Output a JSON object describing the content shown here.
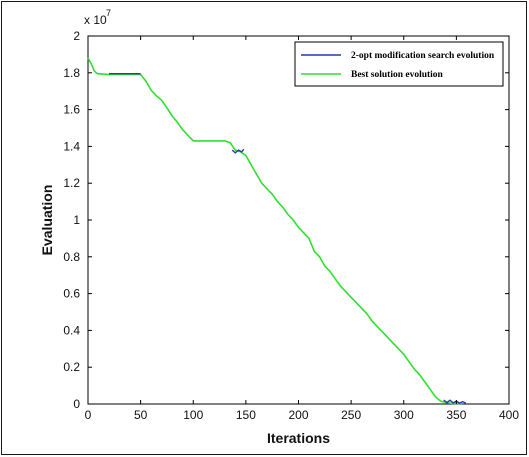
{
  "chart_data": {
    "type": "line",
    "xlabel": "Iterations",
    "ylabel": "Evaluation",
    "x_ticks": [
      "0",
      "50",
      "100",
      "150",
      "200",
      "250",
      "300",
      "350",
      "400"
    ],
    "y_ticks": [
      "0",
      "0.2",
      "0.4",
      "0.6",
      "0.8",
      "1",
      "1.2",
      "1.4",
      "1.6",
      "1.8",
      "2"
    ],
    "y_multiplier_base": "x 10",
    "y_multiplier_exp": "7",
    "xlim": [
      0,
      400
    ],
    "ylim": [
      0,
      20000000
    ],
    "grid": false,
    "legend_position": "top-right",
    "series": [
      {
        "name": "2-opt modification search evolution",
        "color": "#1f3fa8",
        "segments": [
          [
            [
              20,
              17950000
            ],
            [
              30,
              17950000
            ],
            [
              40,
              17950000
            ],
            [
              50,
              17950000
            ]
          ],
          [
            [
              137,
              13800000
            ],
            [
              140,
              13650000
            ],
            [
              143,
              13800000
            ],
            [
              146,
              13700000
            ],
            [
              148,
              13850000
            ]
          ],
          [
            [
              338,
              220000
            ],
            [
              341,
              80000
            ],
            [
              344,
              200000
            ],
            [
              347,
              60000
            ],
            [
              350,
              150000
            ],
            [
              353,
              50000
            ],
            [
              356,
              130000
            ],
            [
              359,
              50000
            ]
          ]
        ]
      },
      {
        "name": "Best solution evolution",
        "color": "#33dd33",
        "points": [
          [
            0,
            18800000
          ],
          [
            3,
            18500000
          ],
          [
            6,
            18100000
          ],
          [
            9,
            17950000
          ],
          [
            20,
            17900000
          ],
          [
            35,
            17900000
          ],
          [
            50,
            17900000
          ],
          [
            55,
            17550000
          ],
          [
            60,
            17050000
          ],
          [
            65,
            16750000
          ],
          [
            70,
            16500000
          ],
          [
            75,
            16100000
          ],
          [
            80,
            15650000
          ],
          [
            85,
            15300000
          ],
          [
            90,
            14900000
          ],
          [
            95,
            14600000
          ],
          [
            100,
            14300000
          ],
          [
            110,
            14300000
          ],
          [
            120,
            14300000
          ],
          [
            130,
            14300000
          ],
          [
            135,
            14200000
          ],
          [
            140,
            13800000
          ],
          [
            145,
            13700000
          ],
          [
            150,
            13500000
          ],
          [
            155,
            13000000
          ],
          [
            160,
            12500000
          ],
          [
            165,
            12000000
          ],
          [
            170,
            11700000
          ],
          [
            175,
            11400000
          ],
          [
            180,
            11000000
          ],
          [
            185,
            10700000
          ],
          [
            190,
            10300000
          ],
          [
            195,
            10000000
          ],
          [
            200,
            9600000
          ],
          [
            205,
            9300000
          ],
          [
            210,
            9000000
          ],
          [
            215,
            8300000
          ],
          [
            220,
            8000000
          ],
          [
            225,
            7500000
          ],
          [
            230,
            7200000
          ],
          [
            235,
            6800000
          ],
          [
            240,
            6400000
          ],
          [
            245,
            6100000
          ],
          [
            250,
            5800000
          ],
          [
            255,
            5500000
          ],
          [
            260,
            5200000
          ],
          [
            265,
            4900000
          ],
          [
            270,
            4500000
          ],
          [
            275,
            4200000
          ],
          [
            280,
            3900000
          ],
          [
            285,
            3600000
          ],
          [
            290,
            3300000
          ],
          [
            295,
            3000000
          ],
          [
            300,
            2700000
          ],
          [
            305,
            2300000
          ],
          [
            310,
            1900000
          ],
          [
            315,
            1600000
          ],
          [
            320,
            1200000
          ],
          [
            325,
            800000
          ],
          [
            330,
            400000
          ],
          [
            335,
            150000
          ],
          [
            340,
            80000
          ],
          [
            345,
            40000
          ],
          [
            350,
            30000
          ],
          [
            355,
            30000
          ]
        ]
      }
    ]
  }
}
